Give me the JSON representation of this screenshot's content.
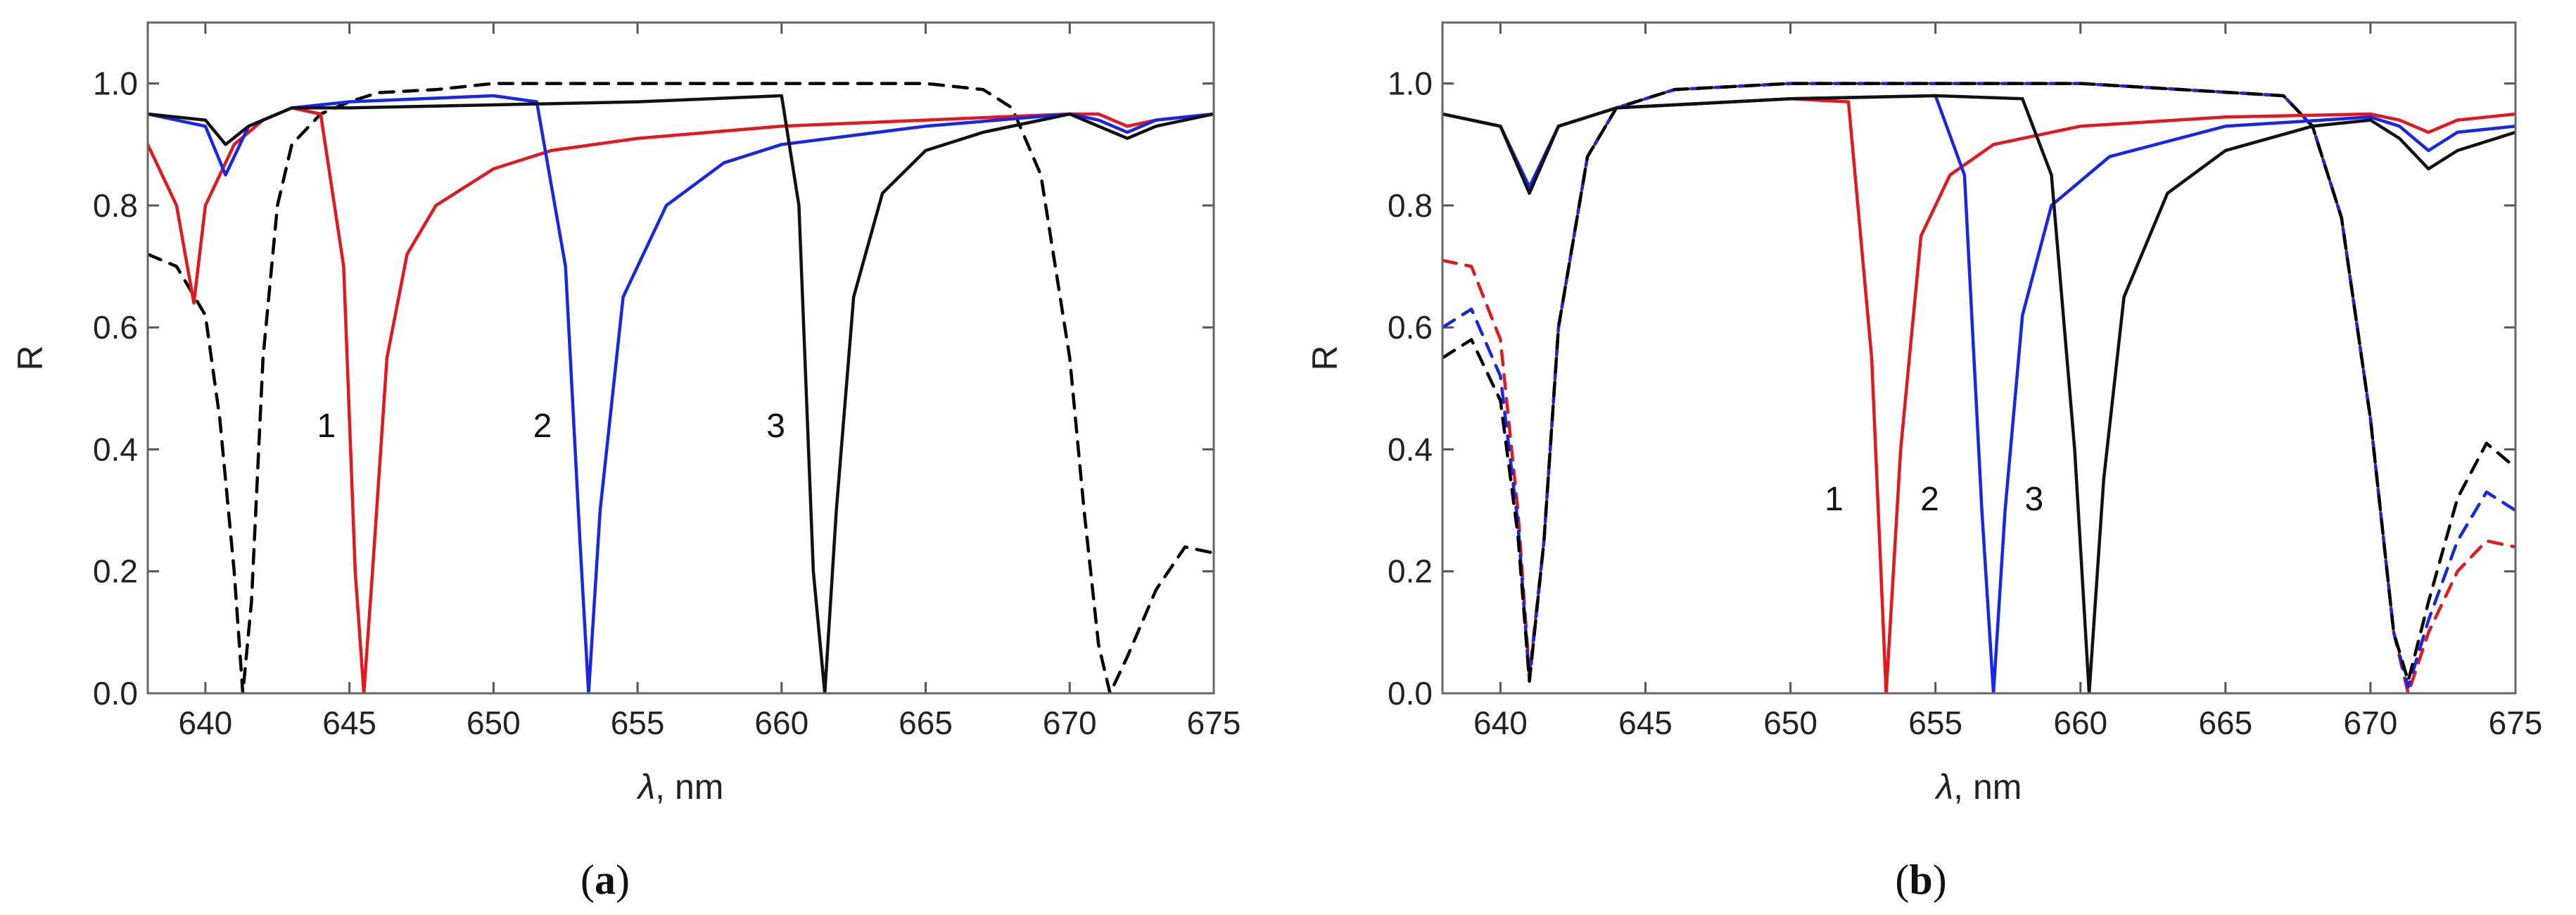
{
  "chart_data": [
    {
      "panel": "(a)",
      "caption_open": "(",
      "caption_letter": "a",
      "caption_close": ")",
      "type": "line",
      "xlabel_symbol": "λ",
      "xlabel_unit": ", nm",
      "ylabel": "R",
      "xlim": [
        638,
        675
      ],
      "ylim": [
        0,
        1.1
      ],
      "xticks": [
        640,
        645,
        650,
        655,
        660,
        665,
        670,
        675
      ],
      "yticks": [
        0.0,
        0.2,
        0.4,
        0.6,
        0.8,
        1.0
      ],
      "xtick_labels": [
        "640",
        "645",
        "650",
        "655",
        "660",
        "665",
        "670",
        "675"
      ],
      "ytick_labels": [
        "0.0",
        "0.2",
        "0.4",
        "0.6",
        "0.8",
        "1.0"
      ],
      "series": [
        {
          "name": "black dashed",
          "color": "#000000",
          "style": "dashed",
          "x": [
            638,
            639,
            640,
            640.5,
            641,
            641.3,
            641.6,
            642,
            642.5,
            643,
            644,
            645,
            646,
            648,
            650,
            655,
            660,
            665,
            667,
            668,
            669,
            670,
            670.5,
            671,
            671.4,
            672,
            673,
            674,
            675
          ],
          "y": [
            0.72,
            0.7,
            0.62,
            0.45,
            0.2,
            0.0,
            0.15,
            0.55,
            0.8,
            0.9,
            0.95,
            0.97,
            0.985,
            0.99,
            1.0,
            1.0,
            1.0,
            1.0,
            0.99,
            0.96,
            0.85,
            0.55,
            0.3,
            0.08,
            0.0,
            0.06,
            0.17,
            0.24,
            0.23
          ]
        },
        {
          "name": "red",
          "color": "#e8161b",
          "style": "solid",
          "x": [
            638,
            639,
            639.6,
            640,
            641,
            642,
            643,
            644,
            644.8,
            645.2,
            645.5,
            645.8,
            646.3,
            647,
            648,
            650,
            652,
            655,
            660,
            665,
            670,
            671,
            672,
            673,
            675
          ],
          "y": [
            0.9,
            0.8,
            0.64,
            0.8,
            0.9,
            0.94,
            0.96,
            0.95,
            0.7,
            0.2,
            0.0,
            0.2,
            0.55,
            0.72,
            0.8,
            0.86,
            0.89,
            0.91,
            0.93,
            0.94,
            0.95,
            0.95,
            0.93,
            0.94,
            0.95
          ]
        },
        {
          "name": "blue",
          "color": "#1626ee",
          "style": "solid",
          "x": [
            638,
            640,
            640.7,
            641.5,
            643,
            645,
            650,
            651.5,
            652.5,
            653,
            653.3,
            653.7,
            654.5,
            656,
            658,
            660,
            665,
            670,
            671,
            672,
            673,
            675
          ],
          "y": [
            0.95,
            0.93,
            0.85,
            0.93,
            0.96,
            0.97,
            0.98,
            0.97,
            0.7,
            0.25,
            0.0,
            0.3,
            0.65,
            0.8,
            0.87,
            0.9,
            0.93,
            0.95,
            0.94,
            0.92,
            0.94,
            0.95
          ]
        },
        {
          "name": "black",
          "color": "#111111",
          "style": "solid",
          "x": [
            638,
            640,
            640.7,
            641.5,
            643,
            645,
            650,
            655,
            660,
            660.6,
            661.1,
            661.5,
            661.9,
            662.5,
            663.5,
            665,
            667,
            670,
            671,
            672,
            673,
            675
          ],
          "y": [
            0.95,
            0.94,
            0.9,
            0.93,
            0.96,
            0.96,
            0.965,
            0.97,
            0.98,
            0.8,
            0.2,
            0.0,
            0.3,
            0.65,
            0.82,
            0.89,
            0.92,
            0.95,
            0.93,
            0.91,
            0.93,
            0.95
          ]
        }
      ],
      "annotations": [
        {
          "text": "1",
          "x": 644.2,
          "y": 0.42
        },
        {
          "text": "2",
          "x": 651.7,
          "y": 0.42
        },
        {
          "text": "3",
          "x": 659.8,
          "y": 0.42
        }
      ]
    },
    {
      "panel": "(b)",
      "caption_open": "(",
      "caption_letter": "b",
      "caption_close": ")",
      "type": "line",
      "xlabel_symbol": "λ",
      "xlabel_unit": ", nm",
      "ylabel": "R",
      "xlim": [
        638,
        675
      ],
      "ylim": [
        0,
        1.1
      ],
      "xticks": [
        640,
        645,
        650,
        655,
        660,
        665,
        670,
        675
      ],
      "yticks": [
        0.0,
        0.2,
        0.4,
        0.6,
        0.8,
        1.0
      ],
      "xtick_labels": [
        "640",
        "645",
        "650",
        "655",
        "660",
        "665",
        "670",
        "675"
      ],
      "ytick_labels": [
        "0.0",
        "0.2",
        "0.4",
        "0.6",
        "0.8",
        "1.0"
      ],
      "series": [
        {
          "name": "red dashed",
          "color": "#e8161b",
          "style": "dashed",
          "x": [
            638,
            639,
            640,
            640.6,
            641,
            641.5,
            642,
            643,
            644,
            646,
            650,
            660,
            667,
            668,
            669,
            670,
            670.8,
            671.3,
            672,
            673,
            674,
            675
          ],
          "y": [
            0.71,
            0.7,
            0.58,
            0.3,
            0.03,
            0.25,
            0.6,
            0.88,
            0.96,
            0.99,
            1.0,
            1.0,
            0.98,
            0.93,
            0.78,
            0.45,
            0.1,
            0.0,
            0.1,
            0.2,
            0.25,
            0.24
          ]
        },
        {
          "name": "blue dashed",
          "color": "#1626ee",
          "style": "dashed",
          "x": [
            638,
            639,
            640,
            640.6,
            641,
            641.5,
            642,
            643,
            644,
            646,
            650,
            660,
            667,
            668,
            669,
            670,
            670.8,
            671.3,
            672,
            673,
            674,
            675
          ],
          "y": [
            0.6,
            0.63,
            0.52,
            0.28,
            0.02,
            0.25,
            0.6,
            0.88,
            0.96,
            0.99,
            1.0,
            1.0,
            0.98,
            0.93,
            0.78,
            0.45,
            0.1,
            0.01,
            0.12,
            0.25,
            0.33,
            0.3
          ]
        },
        {
          "name": "black dashed",
          "color": "#000000",
          "style": "dashed",
          "x": [
            638,
            639,
            640,
            640.6,
            641,
            641.5,
            642,
            643,
            644,
            646,
            650,
            660,
            667,
            668,
            669,
            670,
            670.8,
            671.3,
            672,
            673,
            674,
            675
          ],
          "y": [
            0.55,
            0.58,
            0.48,
            0.26,
            0.02,
            0.25,
            0.6,
            0.88,
            0.96,
            0.99,
            1.0,
            1.0,
            0.98,
            0.93,
            0.78,
            0.45,
            0.1,
            0.02,
            0.15,
            0.32,
            0.41,
            0.37
          ]
        },
        {
          "name": "red",
          "color": "#e8161b",
          "style": "solid",
          "x": [
            638,
            640,
            641,
            642,
            644,
            646,
            650,
            652,
            652.8,
            653.3,
            653.8,
            654.5,
            655.5,
            657,
            660,
            665,
            670,
            671,
            672,
            673,
            675
          ],
          "y": [
            0.95,
            0.93,
            0.83,
            0.93,
            0.96,
            0.965,
            0.975,
            0.97,
            0.55,
            0.0,
            0.4,
            0.75,
            0.85,
            0.9,
            0.93,
            0.945,
            0.95,
            0.94,
            0.92,
            0.94,
            0.95
          ]
        },
        {
          "name": "blue",
          "color": "#1626ee",
          "style": "solid",
          "x": [
            638,
            640,
            641,
            642,
            644,
            646,
            650,
            655,
            656,
            656.6,
            657,
            657.4,
            658,
            659,
            661,
            665,
            670,
            671,
            672,
            673,
            675
          ],
          "y": [
            0.95,
            0.93,
            0.83,
            0.93,
            0.96,
            0.965,
            0.975,
            0.98,
            0.85,
            0.3,
            0.0,
            0.3,
            0.62,
            0.8,
            0.88,
            0.93,
            0.945,
            0.93,
            0.89,
            0.92,
            0.93
          ]
        },
        {
          "name": "black",
          "color": "#111111",
          "style": "solid",
          "x": [
            638,
            640,
            641,
            642,
            644,
            646,
            650,
            655,
            658,
            659,
            659.8,
            660.3,
            660.8,
            661.5,
            663,
            665,
            668,
            670,
            671,
            672,
            673,
            675
          ],
          "y": [
            0.95,
            0.93,
            0.82,
            0.93,
            0.96,
            0.965,
            0.975,
            0.98,
            0.975,
            0.85,
            0.4,
            0.0,
            0.35,
            0.65,
            0.82,
            0.89,
            0.93,
            0.94,
            0.91,
            0.86,
            0.89,
            0.92
          ]
        }
      ],
      "annotations": [
        {
          "text": "1",
          "x": 651.5,
          "y": 0.3
        },
        {
          "text": "2",
          "x": 654.8,
          "y": 0.3
        },
        {
          "text": "3",
          "x": 658.4,
          "y": 0.3
        }
      ]
    }
  ]
}
